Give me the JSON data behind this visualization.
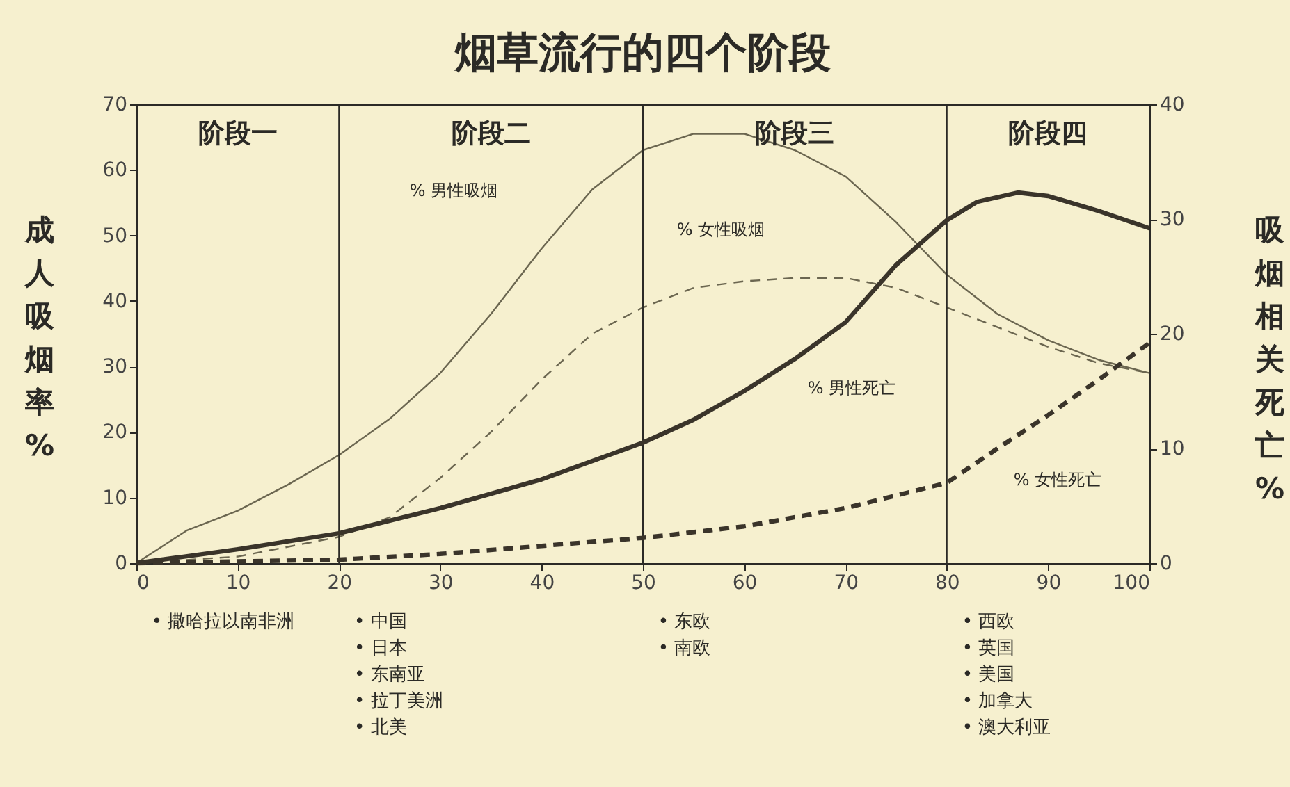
{
  "chart_data": {
    "type": "line",
    "title": "烟草流行的四个阶段",
    "ylabel": "成人吸烟率%",
    "y2label": "吸烟相关死亡%",
    "series": [
      {
        "color": "#6b6650",
        "line_style": "solid",
        "x": [
          0,
          5,
          10,
          15,
          20,
          25,
          30,
          35,
          40,
          45,
          50,
          55,
          60,
          65,
          70,
          75,
          80,
          85,
          90,
          95,
          100
        ],
        "values": [
          0,
          5,
          8,
          12,
          16.5,
          22,
          29,
          38,
          48,
          57,
          63,
          65.5,
          65.5,
          63,
          59,
          52,
          44,
          38,
          34,
          31,
          29
        ]
      },
      {
        "color": "#6b6650",
        "line_style": "dashed",
        "x": [
          0,
          10,
          20,
          25,
          30,
          35,
          40,
          45,
          50,
          55,
          60,
          65,
          70,
          75,
          80,
          85,
          90,
          95,
          100
        ],
        "values": [
          0,
          1,
          4,
          7,
          13,
          20,
          28,
          35,
          39,
          42,
          43,
          43.5,
          43.5,
          42,
          39,
          36,
          33,
          30.5,
          29
        ]
      },
      {
        "color": "#3a342a",
        "line_style": "solid",
        "axis": "y2",
        "x": [
          0,
          10,
          20,
          30,
          40,
          50,
          55,
          60,
          65,
          70,
          75,
          80,
          83,
          87,
          90,
          95,
          100
        ],
        "values": [
          0,
          1.2,
          2.6,
          4.8,
          7.3,
          10.5,
          12.5,
          15,
          17.8,
          21,
          26,
          29.9,
          31.5,
          32.3,
          32,
          30.7,
          29.2
        ]
      },
      {
        "color": "#3a342a",
        "line_style": "dashed",
        "axis": "y2",
        "x": [
          0,
          20,
          30,
          40,
          50,
          60,
          70,
          80,
          85,
          90,
          95,
          100
        ],
        "values": [
          0,
          0.3,
          0.8,
          1.5,
          2.2,
          3.2,
          4.8,
          7,
          10,
          12.9,
          16,
          19.2
        ]
      }
    ],
    "xlim": [
      0,
      100
    ],
    "xticks": [
      0,
      10,
      20,
      30,
      40,
      50,
      60,
      70,
      80,
      90,
      100
    ],
    "ylim": [
      0,
      70
    ],
    "yticks": [
      0,
      10,
      20,
      30,
      40,
      50,
      60,
      70
    ],
    "y2lim": [
      0,
      40
    ],
    "y2ticks": [
      0,
      10,
      20,
      30,
      40
    ],
    "ref_lines": [
      {
        "axis": "x",
        "value": 20
      },
      {
        "axis": "x",
        "value": 50
      },
      {
        "axis": "x",
        "value": 80
      }
    ],
    "annotations": [
      "阶段一",
      "阶段二",
      "阶段三",
      "阶段四",
      "% 男性吸烟",
      "% 女性吸烟",
      "% 男性死亡",
      "% 女性死亡",
      "• 撒哈拉以南非洲",
      "• 中国\n• 日本\n• 东南亚\n• 拉丁美洲\n• 北美",
      "• 东欧\n• 南欧",
      "• 西欧\n• 英国\n• 美国\n• 加拿大\n• 澳大利亚"
    ],
    "grid": false,
    "marker": "none"
  }
}
